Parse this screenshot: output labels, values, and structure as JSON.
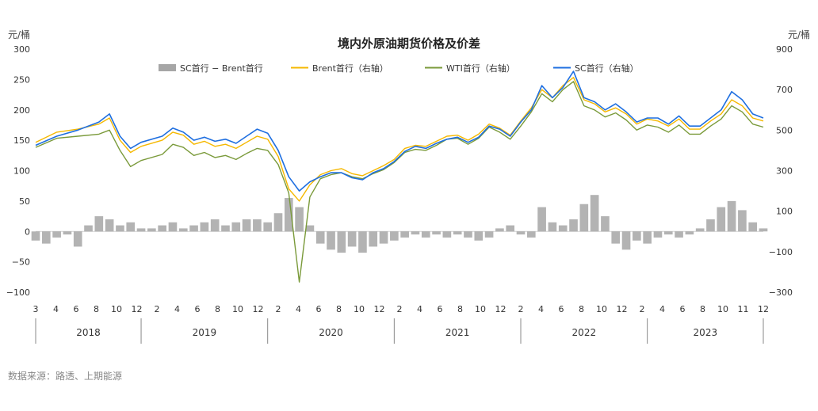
{
  "source": "数据来源：路透、上期能源",
  "colors": {
    "spread": "#a6a6a6",
    "brent": "#f5b800",
    "wti": "#7a9a3a",
    "sc": "#1f6fe0",
    "axis": "#888888"
  },
  "chart_data": {
    "type": "line",
    "title": "境内外原油期货价格及价差",
    "left_unit": "元/桶",
    "right_unit": "元/桶",
    "y_left": {
      "range": [
        -100,
        300
      ],
      "ticks": [
        "300",
        "250",
        "200",
        "150",
        "100",
        "50",
        "0",
        "−50",
        "−100"
      ]
    },
    "y_right": {
      "range": [
        -300,
        900
      ],
      "ticks": [
        "900",
        "700",
        "500",
        "300",
        "100",
        "−100",
        "−300"
      ]
    },
    "x_start": "2018-03",
    "x_end": "2023-12",
    "x_month_labels": [
      "3",
      "4",
      "6",
      "8",
      "10",
      "12",
      "2",
      "4",
      "6",
      "8",
      "10",
      "12",
      "2",
      "4",
      "6",
      "8",
      "10",
      "12",
      "2",
      "4",
      "6",
      "8",
      "10",
      "12",
      "2",
      "4",
      "6",
      "8",
      "10",
      "12",
      "2",
      "4",
      "6",
      "8",
      "10",
      "11",
      "12"
    ],
    "x_years": [
      "2018",
      "2019",
      "2020",
      "2021",
      "2022",
      "2023"
    ],
    "legend": [
      {
        "key": "spread",
        "label": "SC首行 − Brent首行",
        "kind": "bar",
        "axis": "left"
      },
      {
        "key": "brent",
        "label": "Brent首行（右轴）",
        "kind": "line",
        "axis": "right"
      },
      {
        "key": "wti",
        "label": "WTI首行（右轴）",
        "kind": "line",
        "axis": "right"
      },
      {
        "key": "sc",
        "label": "SC首行（右轴）",
        "kind": "line",
        "axis": "right"
      }
    ],
    "series": [
      {
        "key": "sc",
        "name": "SC首行（右轴）",
        "points": [
          [
            "2018-03",
            425
          ],
          [
            "2018-05",
            470
          ],
          [
            "2018-07",
            500
          ],
          [
            "2018-09",
            540
          ],
          [
            "2018-10",
            580
          ],
          [
            "2018-11",
            470
          ],
          [
            "2018-12",
            410
          ],
          [
            "2019-01",
            440
          ],
          [
            "2019-03",
            470
          ],
          [
            "2019-04",
            510
          ],
          [
            "2019-05",
            490
          ],
          [
            "2019-06",
            450
          ],
          [
            "2019-07",
            465
          ],
          [
            "2019-08",
            445
          ],
          [
            "2019-09",
            455
          ],
          [
            "2019-10",
            435
          ],
          [
            "2019-11",
            470
          ],
          [
            "2019-12",
            505
          ],
          [
            "2020-01",
            485
          ],
          [
            "2020-02",
            400
          ],
          [
            "2020-03",
            270
          ],
          [
            "2020-04",
            200
          ],
          [
            "2020-05",
            245
          ],
          [
            "2020-06",
            270
          ],
          [
            "2020-07",
            290
          ],
          [
            "2020-08",
            290
          ],
          [
            "2020-09",
            265
          ],
          [
            "2020-10",
            255
          ],
          [
            "2020-11",
            290
          ],
          [
            "2020-12",
            310
          ],
          [
            "2021-01",
            345
          ],
          [
            "2021-02",
            395
          ],
          [
            "2021-03",
            420
          ],
          [
            "2021-04",
            410
          ],
          [
            "2021-05",
            435
          ],
          [
            "2021-06",
            455
          ],
          [
            "2021-07",
            465
          ],
          [
            "2021-08",
            440
          ],
          [
            "2021-09",
            465
          ],
          [
            "2021-10",
            520
          ],
          [
            "2021-11",
            505
          ],
          [
            "2021-12",
            470
          ],
          [
            "2022-01",
            540
          ],
          [
            "2022-02",
            600
          ],
          [
            "2022-03",
            720
          ],
          [
            "2022-04",
            660
          ],
          [
            "2022-05",
            710
          ],
          [
            "2022-06",
            790
          ],
          [
            "2022-07",
            660
          ],
          [
            "2022-08",
            640
          ],
          [
            "2022-09",
            600
          ],
          [
            "2022-10",
            630
          ],
          [
            "2022-11",
            590
          ],
          [
            "2022-12",
            540
          ],
          [
            "2023-01",
            560
          ],
          [
            "2023-02",
            560
          ],
          [
            "2023-03",
            530
          ],
          [
            "2023-04",
            570
          ],
          [
            "2023-05",
            520
          ],
          [
            "2023-06",
            520
          ],
          [
            "2023-07",
            560
          ],
          [
            "2023-08",
            600
          ],
          [
            "2023-09",
            690
          ],
          [
            "2023-10",
            650
          ],
          [
            "2023-11",
            580
          ],
          [
            "2023-12",
            560
          ]
        ]
      },
      {
        "key": "brent",
        "name": "Brent首行（右轴）",
        "points": [
          [
            "2018-03",
            440
          ],
          [
            "2018-05",
            490
          ],
          [
            "2018-07",
            505
          ],
          [
            "2018-09",
            530
          ],
          [
            "2018-10",
            560
          ],
          [
            "2018-11",
            450
          ],
          [
            "2018-12",
            390
          ],
          [
            "2019-01",
            420
          ],
          [
            "2019-03",
            450
          ],
          [
            "2019-04",
            490
          ],
          [
            "2019-05",
            475
          ],
          [
            "2019-06",
            430
          ],
          [
            "2019-07",
            445
          ],
          [
            "2019-08",
            420
          ],
          [
            "2019-09",
            430
          ],
          [
            "2019-10",
            410
          ],
          [
            "2019-11",
            440
          ],
          [
            "2019-12",
            470
          ],
          [
            "2020-01",
            455
          ],
          [
            "2020-02",
            370
          ],
          [
            "2020-03",
            210
          ],
          [
            "2020-04",
            150
          ],
          [
            "2020-05",
            230
          ],
          [
            "2020-06",
            280
          ],
          [
            "2020-07",
            300
          ],
          [
            "2020-08",
            310
          ],
          [
            "2020-09",
            285
          ],
          [
            "2020-10",
            275
          ],
          [
            "2020-11",
            300
          ],
          [
            "2020-12",
            325
          ],
          [
            "2021-01",
            355
          ],
          [
            "2021-02",
            410
          ],
          [
            "2021-03",
            425
          ],
          [
            "2021-04",
            420
          ],
          [
            "2021-05",
            445
          ],
          [
            "2021-06",
            470
          ],
          [
            "2021-07",
            475
          ],
          [
            "2021-08",
            450
          ],
          [
            "2021-09",
            480
          ],
          [
            "2021-10",
            530
          ],
          [
            "2021-11",
            510
          ],
          [
            "2021-12",
            475
          ],
          [
            "2022-01",
            545
          ],
          [
            "2022-02",
            610
          ],
          [
            "2022-03",
            700
          ],
          [
            "2022-04",
            660
          ],
          [
            "2022-05",
            720
          ],
          [
            "2022-06",
            760
          ],
          [
            "2022-07",
            650
          ],
          [
            "2022-08",
            630
          ],
          [
            "2022-09",
            590
          ],
          [
            "2022-10",
            610
          ],
          [
            "2022-11",
            580
          ],
          [
            "2022-12",
            530
          ],
          [
            "2023-01",
            555
          ],
          [
            "2023-02",
            545
          ],
          [
            "2023-03",
            520
          ],
          [
            "2023-04",
            555
          ],
          [
            "2023-05",
            505
          ],
          [
            "2023-06",
            505
          ],
          [
            "2023-07",
            545
          ],
          [
            "2023-08",
            580
          ],
          [
            "2023-09",
            650
          ],
          [
            "2023-10",
            620
          ],
          [
            "2023-11",
            560
          ],
          [
            "2023-12",
            545
          ]
        ]
      },
      {
        "key": "wti",
        "name": "WTI首行（右轴）",
        "points": [
          [
            "2018-03",
            415
          ],
          [
            "2018-05",
            460
          ],
          [
            "2018-07",
            470
          ],
          [
            "2018-09",
            480
          ],
          [
            "2018-10",
            500
          ],
          [
            "2018-11",
            400
          ],
          [
            "2018-12",
            320
          ],
          [
            "2019-01",
            350
          ],
          [
            "2019-03",
            380
          ],
          [
            "2019-04",
            430
          ],
          [
            "2019-05",
            415
          ],
          [
            "2019-06",
            375
          ],
          [
            "2019-07",
            390
          ],
          [
            "2019-08",
            365
          ],
          [
            "2019-09",
            375
          ],
          [
            "2019-10",
            355
          ],
          [
            "2019-11",
            385
          ],
          [
            "2019-12",
            410
          ],
          [
            "2020-01",
            400
          ],
          [
            "2020-02",
            330
          ],
          [
            "2020-03",
            190
          ],
          [
            "2020-04",
            -250
          ],
          [
            "2020-05",
            170
          ],
          [
            "2020-06",
            260
          ],
          [
            "2020-07",
            280
          ],
          [
            "2020-08",
            290
          ],
          [
            "2020-09",
            270
          ],
          [
            "2020-10",
            260
          ],
          [
            "2020-11",
            285
          ],
          [
            "2020-12",
            305
          ],
          [
            "2021-01",
            340
          ],
          [
            "2021-02",
            390
          ],
          [
            "2021-03",
            405
          ],
          [
            "2021-04",
            400
          ],
          [
            "2021-05",
            425
          ],
          [
            "2021-06",
            455
          ],
          [
            "2021-07",
            460
          ],
          [
            "2021-08",
            430
          ],
          [
            "2021-09",
            460
          ],
          [
            "2021-10",
            515
          ],
          [
            "2021-11",
            490
          ],
          [
            "2021-12",
            455
          ],
          [
            "2022-01",
            520
          ],
          [
            "2022-02",
            590
          ],
          [
            "2022-03",
            680
          ],
          [
            "2022-04",
            640
          ],
          [
            "2022-05",
            700
          ],
          [
            "2022-06",
            740
          ],
          [
            "2022-07",
            620
          ],
          [
            "2022-08",
            600
          ],
          [
            "2022-09",
            565
          ],
          [
            "2022-10",
            585
          ],
          [
            "2022-11",
            550
          ],
          [
            "2022-12",
            500
          ],
          [
            "2023-01",
            525
          ],
          [
            "2023-02",
            515
          ],
          [
            "2023-03",
            490
          ],
          [
            "2023-04",
            525
          ],
          [
            "2023-05",
            480
          ],
          [
            "2023-06",
            480
          ],
          [
            "2023-07",
            520
          ],
          [
            "2023-08",
            555
          ],
          [
            "2023-09",
            620
          ],
          [
            "2023-10",
            590
          ],
          [
            "2023-11",
            530
          ],
          [
            "2023-12",
            515
          ]
        ]
      },
      {
        "key": "spread",
        "name": "SC首行 − Brent首行",
        "points": [
          [
            "2018-03",
            -15
          ],
          [
            "2018-04",
            -20
          ],
          [
            "2018-05",
            -10
          ],
          [
            "2018-06",
            -5
          ],
          [
            "2018-07",
            -25
          ],
          [
            "2018-08",
            10
          ],
          [
            "2018-09",
            25
          ],
          [
            "2018-10",
            20
          ],
          [
            "2018-11",
            10
          ],
          [
            "2018-12",
            15
          ],
          [
            "2019-01",
            5
          ],
          [
            "2019-02",
            5
          ],
          [
            "2019-03",
            10
          ],
          [
            "2019-04",
            15
          ],
          [
            "2019-05",
            5
          ],
          [
            "2019-06",
            10
          ],
          [
            "2019-07",
            15
          ],
          [
            "2019-08",
            20
          ],
          [
            "2019-09",
            10
          ],
          [
            "2019-10",
            15
          ],
          [
            "2019-11",
            20
          ],
          [
            "2019-12",
            20
          ],
          [
            "2020-01",
            15
          ],
          [
            "2020-02",
            30
          ],
          [
            "2020-03",
            55
          ],
          [
            "2020-04",
            40
          ],
          [
            "2020-05",
            10
          ],
          [
            "2020-06",
            -20
          ],
          [
            "2020-07",
            -30
          ],
          [
            "2020-08",
            -35
          ],
          [
            "2020-09",
            -25
          ],
          [
            "2020-10",
            -35
          ],
          [
            "2020-11",
            -25
          ],
          [
            "2020-12",
            -20
          ],
          [
            "2021-01",
            -15
          ],
          [
            "2021-02",
            -10
          ],
          [
            "2021-03",
            -5
          ],
          [
            "2021-04",
            -10
          ],
          [
            "2021-05",
            -5
          ],
          [
            "2021-06",
            -10
          ],
          [
            "2021-07",
            -5
          ],
          [
            "2021-08",
            -10
          ],
          [
            "2021-09",
            -15
          ],
          [
            "2021-10",
            -10
          ],
          [
            "2021-11",
            5
          ],
          [
            "2021-12",
            10
          ],
          [
            "2022-01",
            -5
          ],
          [
            "2022-02",
            -10
          ],
          [
            "2022-03",
            40
          ],
          [
            "2022-04",
            15
          ],
          [
            "2022-05",
            10
          ],
          [
            "2022-06",
            20
          ],
          [
            "2022-07",
            45
          ],
          [
            "2022-08",
            60
          ],
          [
            "2022-09",
            25
          ],
          [
            "2022-10",
            -20
          ],
          [
            "2022-11",
            -30
          ],
          [
            "2022-12",
            -15
          ],
          [
            "2023-01",
            -20
          ],
          [
            "2023-02",
            -10
          ],
          [
            "2023-03",
            -5
          ],
          [
            "2023-04",
            -10
          ],
          [
            "2023-05",
            -5
          ],
          [
            "2023-06",
            5
          ],
          [
            "2023-07",
            20
          ],
          [
            "2023-08",
            40
          ],
          [
            "2023-09",
            50
          ],
          [
            "2023-10",
            35
          ],
          [
            "2023-11",
            15
          ],
          [
            "2023-12",
            5
          ]
        ]
      }
    ]
  }
}
